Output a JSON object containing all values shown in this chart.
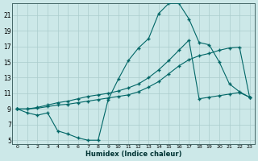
{
  "xlabel": "Humidex (Indice chaleur)",
  "bg_color": "#cce8e8",
  "grid_color": "#aacccc",
  "line_color": "#006666",
  "xlim": [
    -0.5,
    23.5
  ],
  "ylim": [
    4.5,
    22.5
  ],
  "xticks": [
    0,
    1,
    2,
    3,
    4,
    5,
    6,
    7,
    8,
    9,
    10,
    11,
    12,
    13,
    14,
    15,
    16,
    17,
    18,
    19,
    20,
    21,
    22,
    23
  ],
  "yticks": [
    5,
    7,
    9,
    11,
    13,
    15,
    17,
    19,
    21
  ],
  "line1_x": [
    0,
    1,
    2,
    3,
    4,
    5,
    6,
    7,
    8,
    9,
    10,
    11,
    12,
    13,
    14,
    15,
    16,
    17,
    18,
    19,
    20,
    21,
    22,
    23
  ],
  "line1_y": [
    9.0,
    8.5,
    8.2,
    8.5,
    6.2,
    5.8,
    5.3,
    5.0,
    5.0,
    10.2,
    12.8,
    15.2,
    16.8,
    18.0,
    21.2,
    22.5,
    22.5,
    20.5,
    17.5,
    17.2,
    15.0,
    12.2,
    11.2,
    10.5
  ],
  "line2_x": [
    0,
    1,
    2,
    3,
    4,
    5,
    6,
    7,
    8,
    9,
    10,
    11,
    12,
    13,
    14,
    15,
    16,
    17,
    18,
    19,
    20,
    21,
    22,
    23
  ],
  "line2_y": [
    9.0,
    9.0,
    9.1,
    9.3,
    9.5,
    9.6,
    9.8,
    10.0,
    10.2,
    10.4,
    10.6,
    10.8,
    11.2,
    11.8,
    12.5,
    13.5,
    14.5,
    15.3,
    15.8,
    16.1,
    16.5,
    16.8,
    16.9,
    10.5
  ],
  "line3_x": [
    0,
    1,
    2,
    3,
    4,
    5,
    6,
    7,
    8,
    9,
    10,
    11,
    12,
    13,
    14,
    15,
    16,
    17,
    18,
    19,
    20,
    21,
    22,
    23
  ],
  "line3_y": [
    9.0,
    9.0,
    9.2,
    9.5,
    9.8,
    10.0,
    10.3,
    10.6,
    10.8,
    11.0,
    11.3,
    11.7,
    12.2,
    13.0,
    14.0,
    15.2,
    16.5,
    17.8,
    10.3,
    10.5,
    10.7,
    10.9,
    11.1,
    10.5
  ]
}
